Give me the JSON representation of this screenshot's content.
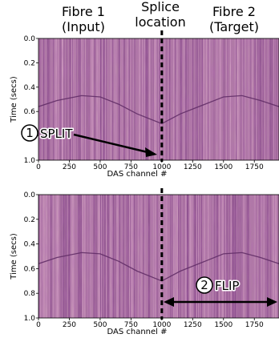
{
  "headers": {
    "left": [
      "Fibre 1",
      "(Input)"
    ],
    "middle": [
      "Splice",
      "location"
    ],
    "right": [
      "Fibre 2",
      "(Target)"
    ]
  },
  "annotations": {
    "split": {
      "number": "1",
      "text": "SPLIT"
    },
    "flip": {
      "number": "2",
      "text": "FLIP"
    }
  },
  "chart_data": [
    {
      "type": "heatmap",
      "panel": "top",
      "xlabel": "DAS channel #",
      "ylabel": "Time (secs)",
      "xlim": [
        0,
        1950
      ],
      "ylim": [
        1.0,
        0.0
      ],
      "xticks": [
        0,
        250,
        500,
        750,
        1000,
        1250,
        1500,
        1750
      ],
      "yticks": [
        "0.0",
        "0.2",
        "0.4",
        "0.6",
        "0.8",
        "1.0"
      ],
      "splice_channel": 1000,
      "event_trace": {
        "x": [
          0,
          150,
          350,
          500,
          650,
          800,
          1000,
          1150,
          1350,
          1500,
          1650,
          1800,
          1950
        ],
        "y": [
          0.56,
          0.51,
          0.47,
          0.48,
          0.54,
          0.62,
          0.7,
          0.62,
          0.54,
          0.48,
          0.47,
          0.51,
          0.56
        ]
      }
    },
    {
      "type": "heatmap",
      "panel": "bottom",
      "xlabel": "DAS channel #",
      "ylabel": "Time (secs)",
      "xlim": [
        0,
        1950
      ],
      "ylim": [
        1.0,
        0.0
      ],
      "xticks": [
        0,
        250,
        500,
        750,
        1000,
        1250,
        1500,
        1750
      ],
      "yticks": [
        "0.0",
        "0.2",
        "0.4",
        "0.6",
        "0.8",
        "1.0"
      ],
      "splice_channel": 1000,
      "event_trace": {
        "x": [
          0,
          150,
          350,
          500,
          650,
          800,
          1000,
          1150,
          1350,
          1500,
          1650,
          1800,
          1950
        ],
        "y": [
          0.56,
          0.51,
          0.47,
          0.48,
          0.54,
          0.62,
          0.7,
          0.62,
          0.54,
          0.48,
          0.47,
          0.51,
          0.56
        ]
      }
    }
  ],
  "colors": {
    "background": "#b07aa6",
    "stripe_dark": "#7d3f83",
    "stripe_light": "#d3a2c3",
    "event": "#5e2a64",
    "splice_line": "#000000",
    "axis": "#000000"
  }
}
